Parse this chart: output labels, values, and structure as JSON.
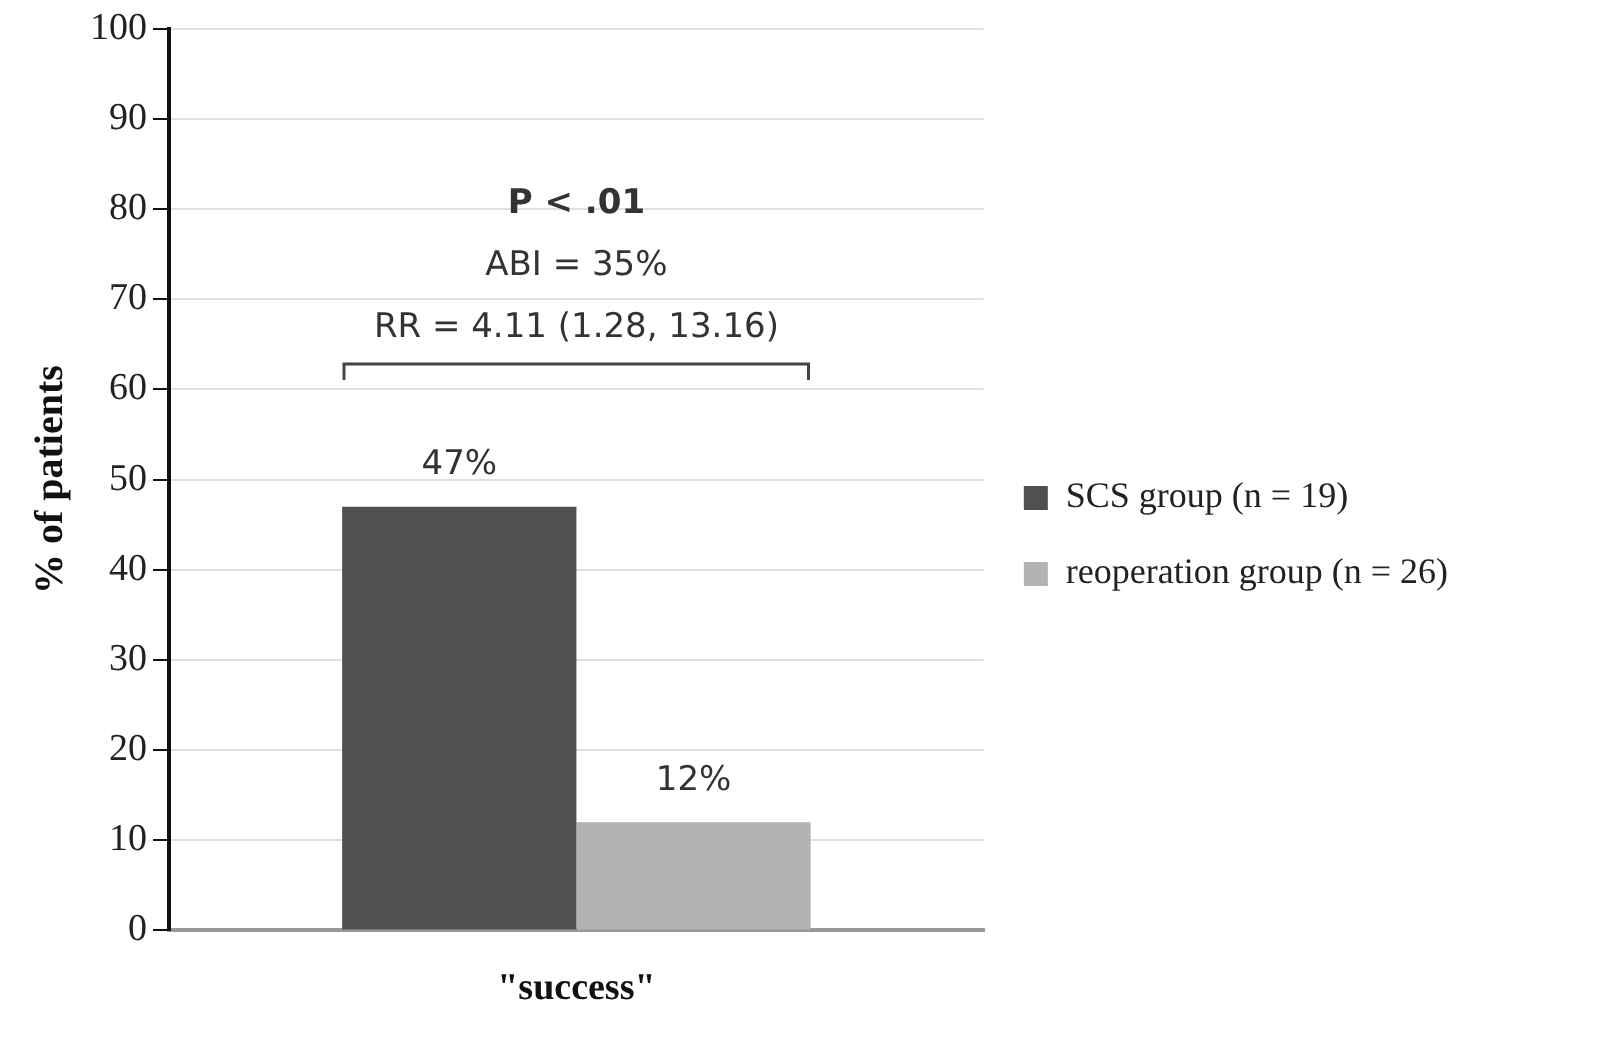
{
  "chart_data": {
    "type": "bar",
    "ylabel": "% of patients",
    "categories": [
      "\"success\""
    ],
    "series": [
      {
        "name": "SCS group (n = 19)",
        "color": "#505050",
        "values": [
          47
        ],
        "value_labels": [
          "47%"
        ]
      },
      {
        "name": "reoperation group (n = 26)",
        "color": "#b3b3b3",
        "values": [
          12
        ],
        "value_labels": [
          "12%"
        ]
      }
    ],
    "ylim": [
      0,
      100
    ],
    "yticks": [
      0,
      10,
      20,
      30,
      40,
      50,
      60,
      70,
      80,
      90,
      100
    ],
    "grid": "y",
    "legend": "right",
    "annotations": [
      "P < .01",
      "ABI = 35%",
      "RR = 4.11 (1.28, 13.16)"
    ]
  }
}
